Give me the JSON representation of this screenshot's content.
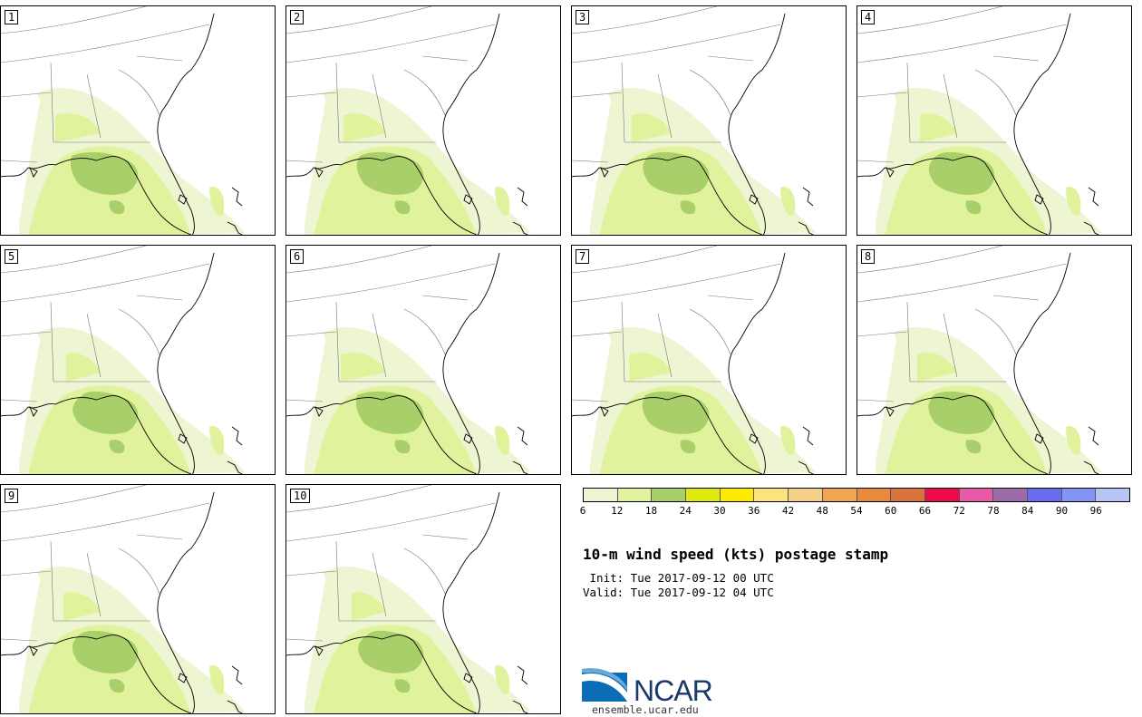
{
  "panels": [
    {
      "label": "1"
    },
    {
      "label": "2"
    },
    {
      "label": "3"
    },
    {
      "label": "4"
    },
    {
      "label": "5"
    },
    {
      "label": "6"
    },
    {
      "label": "7"
    },
    {
      "label": "8"
    },
    {
      "label": "9"
    },
    {
      "label": "10"
    }
  ],
  "legend": {
    "colors": [
      "#eef5d2",
      "#e1f29d",
      "#a8cf69",
      "#dfe80f",
      "#ffeb00",
      "#fbe47e",
      "#f5cf8a",
      "#f0a552",
      "#e88a3d",
      "#d7733b",
      "#ec0a4b",
      "#e85aa6",
      "#9c6ca9",
      "#6b6bf0",
      "#8395f4",
      "#b6c5f4"
    ],
    "ticks": [
      "6",
      "12",
      "18",
      "24",
      "30",
      "36",
      "42",
      "48",
      "54",
      "60",
      "66",
      "72",
      "78",
      "84",
      "90",
      "96"
    ]
  },
  "title": "10-m wind speed (kts) postage stamp",
  "init_line": " Init: Tue 2017-09-12 00 UTC",
  "valid_line": "Valid: Tue 2017-09-12 04 UTC",
  "logo": {
    "text": "NCAR",
    "site": "ensemble.ucar.edu"
  }
}
